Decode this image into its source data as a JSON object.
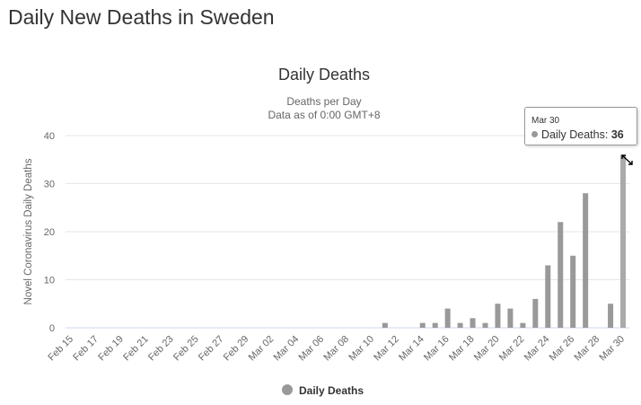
{
  "page": {
    "title": "Daily New Deaths in Sweden"
  },
  "colors": {
    "bar": "#999999",
    "bar_hover": "#aaaaaa",
    "grid": "#e6e6e6",
    "text": "#666666",
    "title": "#333333"
  },
  "chart_data": {
    "type": "bar",
    "title": "Daily Deaths",
    "subtitle_lines": [
      "Deaths per Day",
      "Data as of 0:00 GMT+8"
    ],
    "ylabel": "Novel Coronavirus Daily Deaths",
    "xlabel": "",
    "ylim": [
      0,
      40
    ],
    "yticks": [
      0,
      10,
      20,
      30,
      40
    ],
    "grid": true,
    "legend_position": "bottom-center",
    "x_tick_labels": [
      "Feb 15",
      "Feb 17",
      "Feb 19",
      "Feb 21",
      "Feb 23",
      "Feb 25",
      "Feb 27",
      "Feb 29",
      "Mar 02",
      "Mar 04",
      "Mar 06",
      "Mar 08",
      "Mar 10",
      "Mar 12",
      "Mar 14",
      "Mar 16",
      "Mar 18",
      "Mar 20",
      "Mar 22",
      "Mar 24",
      "Mar 26",
      "Mar 28",
      "Mar 30"
    ],
    "categories": [
      "Feb 15",
      "Feb 16",
      "Feb 17",
      "Feb 18",
      "Feb 19",
      "Feb 20",
      "Feb 21",
      "Feb 22",
      "Feb 23",
      "Feb 24",
      "Feb 25",
      "Feb 26",
      "Feb 27",
      "Feb 28",
      "Feb 29",
      "Mar 01",
      "Mar 02",
      "Mar 03",
      "Mar 04",
      "Mar 05",
      "Mar 06",
      "Mar 07",
      "Mar 08",
      "Mar 09",
      "Mar 10",
      "Mar 11",
      "Mar 12",
      "Mar 13",
      "Mar 14",
      "Mar 15",
      "Mar 16",
      "Mar 17",
      "Mar 18",
      "Mar 19",
      "Mar 20",
      "Mar 21",
      "Mar 22",
      "Mar 23",
      "Mar 24",
      "Mar 25",
      "Mar 26",
      "Mar 27",
      "Mar 28",
      "Mar 29",
      "Mar 30"
    ],
    "series": [
      {
        "name": "Daily Deaths",
        "values": [
          0,
          0,
          0,
          0,
          0,
          0,
          0,
          0,
          0,
          0,
          0,
          0,
          0,
          0,
          0,
          0,
          0,
          0,
          0,
          0,
          0,
          0,
          0,
          0,
          0,
          1,
          0,
          0,
          1,
          1,
          4,
          1,
          2,
          1,
          5,
          4,
          1,
          6,
          13,
          22,
          15,
          28,
          0,
          5,
          36
        ]
      }
    ],
    "tooltip": {
      "date": "Mar 30",
      "series_label": "Daily Deaths:",
      "value": "36"
    }
  }
}
